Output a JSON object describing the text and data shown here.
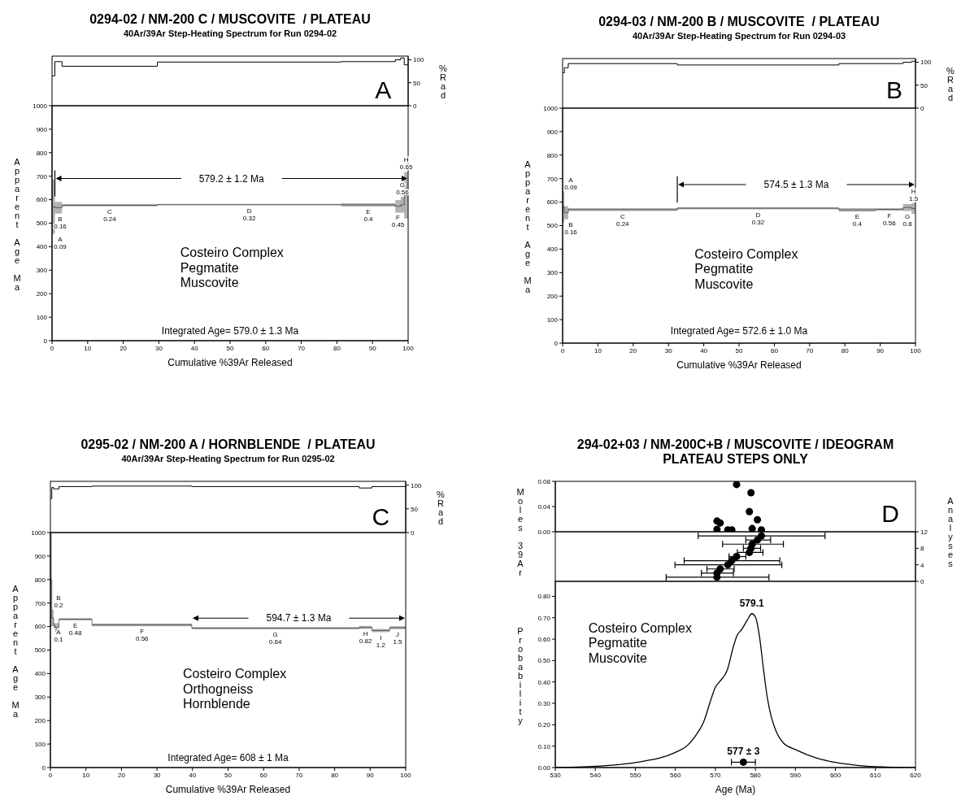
{
  "chart_data": [
    {
      "type": "step",
      "title": "0294-02 / NM-200 C / MUSCOVITE  / PLATEAU",
      "subtitle": "40Ar/39Ar Step-Heating Spectrum for Run 0294-02",
      "x": [
        0,
        0.8,
        2.8,
        29.6,
        81.2,
        96.4,
        97.9,
        98.9,
        100
      ],
      "series": [
        {
          "color": "#000000",
          "values": [
            65,
            96,
            86,
            95,
            96,
            100,
            104,
            89,
            89
          ]
        }
      ],
      "xlim": [
        0,
        100
      ],
      "xticks": [
        0,
        10,
        20,
        30,
        40,
        50,
        60,
        70,
        80,
        90,
        100
      ],
      "ylim": [
        0,
        108
      ],
      "yticks": [
        0,
        50,
        100
      ],
      "ylabel": "%Rad",
      "tick_labels": "y",
      "annotations": [
        "A"
      ]
    },
    {
      "type": "step",
      "x": [
        0,
        0.8,
        2.8,
        29.6,
        81.2,
        96.4,
        97.9,
        98.9,
        100
      ],
      "series": [
        {
          "color": "#000000",
          "values": [
            570,
            566,
            576,
            579,
            578,
            572,
            578,
            619,
            619
          ],
          "lower": [
            455,
            541,
            572,
            576,
            571,
            545,
            545,
            520,
            520
          ],
          "upper": [
            685,
            591,
            581,
            582,
            585,
            599,
            612,
            718,
            718
          ]
        }
      ],
      "xlim": [
        0,
        100
      ],
      "xticks": [
        0,
        10,
        20,
        30,
        40,
        50,
        60,
        70,
        80,
        90,
        100
      ],
      "ylim": [
        0,
        1000
      ],
      "yticks": [
        0,
        100,
        200,
        300,
        400,
        500,
        600,
        700,
        800,
        900,
        1000
      ],
      "xlabel": "Cumulative %39Ar Released",
      "ylabel": "Apparent Age Ma",
      "annotations": [
        "Costeiro Complex\nPegmatite\nMuscovite",
        "Integrated Age= 579.0 ± 1.3 Ma",
        "579.2 ± 1.2 Ma",
        {
          "text": "A\n0.09",
          "x": 0.4,
          "y": 455
        },
        {
          "text": "B\n0.16",
          "x": 1.8,
          "y": 541
        },
        {
          "text": "C\n0.24",
          "x": 16.2,
          "y": 572
        },
        {
          "text": "D\n0.32",
          "x": 55.4,
          "y": 576
        },
        {
          "text": "E\n0.4",
          "x": 88.8,
          "y": 571
        },
        {
          "text": "F\n0.45",
          "x": 97.15,
          "y": 545
        },
        {
          "text": "G\n0.56",
          "x": 98.4,
          "y": 612
        },
        {
          "text": "H\n0.65",
          "x": 99.45,
          "y": 718
        }
      ]
    },
    {
      "type": "step",
      "title": "0294-03 / NM-200 B / MUSCOVITE  / PLATEAU",
      "subtitle": "40Ar/39Ar Step-Heating Spectrum for Run 0294-03",
      "x": [
        0,
        0.5,
        1.6,
        32.5,
        78.3,
        88.7,
        96.5,
        98.9,
        100
      ],
      "series": [
        {
          "color": "#000000",
          "values": [
            77,
            88,
            97,
            94,
            97,
            97,
            100,
            102,
            102
          ]
        }
      ],
      "xlim": [
        0,
        100
      ],
      "xticks": [
        0,
        10,
        20,
        30,
        40,
        50,
        60,
        70,
        80,
        90,
        100
      ],
      "ylim": [
        0,
        108
      ],
      "yticks": [
        0,
        50,
        100
      ],
      "ylabel": "%Rad",
      "tick_labels": "y",
      "annotations": [
        "B"
      ]
    },
    {
      "type": "step",
      "x": [
        0,
        0.5,
        1.6,
        32.5,
        78.3,
        88.7,
        96.5,
        98.9,
        100
      ],
      "series": [
        {
          "color": "#000000",
          "values": [
            580,
            555,
            568,
            574,
            567,
            569,
            577,
            573,
            573
          ],
          "lower": [
            515,
            527,
            562,
            569,
            560,
            564,
            562,
            550,
            550
          ],
          "upper": [
            645,
            582,
            574,
            579,
            574,
            574,
            592,
            596,
            596
          ]
        }
      ],
      "xlim": [
        0,
        100
      ],
      "xticks": [
        0,
        10,
        20,
        30,
        40,
        50,
        60,
        70,
        80,
        90,
        100
      ],
      "ylim": [
        0,
        1000
      ],
      "yticks": [
        0,
        100,
        200,
        300,
        400,
        500,
        600,
        700,
        800,
        900,
        1000
      ],
      "xlabel": "Cumulative %39Ar Released",
      "ylabel": "Apparent Age Ma",
      "annotations": [
        "Costeiro Complex\nPegmatite\nMuscovite",
        "Integrated Age= 572.6 ± 1.0 Ma",
        "574.5 ± 1.3 Ma",
        {
          "text": "A\n0.09",
          "x": 0.25,
          "y": 645
        },
        {
          "text": "B\n0.16",
          "x": 1.05,
          "y": 527
        },
        {
          "text": "C\n0.24",
          "x": 17,
          "y": 562
        },
        {
          "text": "D\n0.32",
          "x": 55.4,
          "y": 569
        },
        {
          "text": "E\n0.4",
          "x": 83.5,
          "y": 560
        },
        {
          "text": "F\n0.56",
          "x": 92.6,
          "y": 564
        },
        {
          "text": "G\n0.8",
          "x": 97.7,
          "y": 562
        },
        {
          "text": "H\n1.5",
          "x": 99.45,
          "y": 596
        }
      ]
    },
    {
      "type": "step",
      "title": "0295-02 / NM-200 A / HORNBLENDE  / PLATEAU",
      "subtitle": "40Ar/39Ar Step-Heating Spectrum for Run 0295-02",
      "x": [
        0,
        0.4,
        0.9,
        1.3,
        2.4,
        11.7,
        39.8,
        86.9,
        90.5,
        95.5,
        100
      ],
      "series": [
        {
          "color": "#000000",
          "values": [
            72,
            95,
            92,
            92,
            97,
            98,
            97,
            94,
            97,
            97,
            97
          ]
        }
      ],
      "xlim": [
        0,
        100
      ],
      "xticks": [
        0,
        10,
        20,
        30,
        40,
        50,
        60,
        70,
        80,
        90,
        100
      ],
      "ylim": [
        0,
        108
      ],
      "yticks": [
        0,
        50,
        100
      ],
      "ylabel": "%Rad",
      "tick_labels": "y",
      "annotations": [
        "C"
      ]
    },
    {
      "type": "step",
      "x": [
        0,
        0.4,
        0.9,
        1.3,
        2.4,
        11.7,
        39.8,
        86.9,
        90.5,
        95.5,
        100
      ],
      "series": [
        {
          "color": "#000000",
          "values": [
            800,
            636,
            605,
            595,
            631,
            607,
            593,
            596,
            583,
            595,
            595
          ],
          "lower": [
            600,
            600,
            595,
            576,
            626,
            601,
            588,
            590,
            576,
            589,
            589
          ],
          "upper": [
            1000,
            672,
            615,
            614,
            636,
            613,
            598,
            603,
            590,
            601,
            601
          ]
        }
      ],
      "xlim": [
        0,
        100
      ],
      "xticks": [
        0,
        10,
        20,
        30,
        40,
        50,
        60,
        70,
        80,
        90,
        100
      ],
      "ylim": [
        0,
        1000
      ],
      "yticks": [
        0,
        100,
        200,
        300,
        400,
        500,
        600,
        700,
        800,
        900,
        1000
      ],
      "xlabel": "Cumulative %39Ar Released",
      "ylabel": "Apparent Age Ma",
      "annotations": [
        "Costeiro Complex\nOrthogneiss\nHornblende",
        "Integrated Age= 608 ± 1 Ma",
        "594.7 ± 1.3 Ma",
        {
          "text": "A\n0.1",
          "x": 0.2,
          "y": 600
        },
        {
          "text": "B\n0.2",
          "x": 0.65,
          "y": 672
        },
        {
          "text": "E\n0.48",
          "x": 7,
          "y": 626
        },
        {
          "text": "F\n0.56",
          "x": 25.8,
          "y": 601
        },
        {
          "text": "G\n0.64",
          "x": 63.3,
          "y": 588
        },
        {
          "text": "H\n0.82",
          "x": 88.7,
          "y": 590
        },
        {
          "text": "I\n1.2",
          "x": 93,
          "y": 576
        },
        {
          "text": "J\n1.5",
          "x": 97.7,
          "y": 589
        }
      ]
    },
    {
      "type": "scatter",
      "title": "294-02+03 / NM-200C+B / MUSCOVITE / IDEOGRAM",
      "subtitle": "PLATEAU STEPS ONLY",
      "marker": "circle",
      "x": [
        575.3,
        578.9,
        578.5,
        580.5,
        570.4,
        571.2,
        570.4,
        573.1,
        574.1,
        579.2,
        581.5
      ],
      "series": [
        {
          "color": "#000000",
          "values": [
            0.075,
            0.062,
            0.032,
            0.019,
            0.017,
            0.014,
            0.004,
            0.003,
            0.003,
            0.005,
            0.003
          ]
        }
      ],
      "xlim": [
        530,
        620
      ],
      "xticks": [
        530,
        540,
        550,
        560,
        570,
        580,
        590,
        600,
        610,
        620
      ],
      "ylim": [
        0,
        0.08
      ],
      "yticks": [
        {
          "value": 0,
          "label": "0.00"
        },
        {
          "value": 0.04,
          "label": "0.04"
        },
        {
          "value": 0.08,
          "label": "0.08"
        }
      ],
      "ylabel": "Moles 39Ar",
      "tick_labels": "y",
      "annotations": [
        "D"
      ]
    },
    {
      "type": "scatter",
      "marker": "circle",
      "x": [
        570.4,
        570.4,
        571.2,
        573.1,
        574.1,
        575.3,
        578.5,
        578.9,
        579.2,
        580.5,
        581.5
      ],
      "series": [
        {
          "color": "#000000",
          "values": [
            1,
            2,
            3,
            4,
            5,
            6,
            7,
            8,
            9,
            10,
            11
          ],
          "xerrors": [
            [
              557.7,
              583.4
            ],
            [
              566.5,
              574.5
            ],
            [
              567.9,
              574.7
            ],
            [
              559.9,
              586.6
            ],
            [
              562.2,
              586.1
            ],
            [
              573.4,
              577.6
            ],
            [
              575.5,
              581.9
            ],
            [
              577.0,
              581.3
            ],
            [
              571.8,
              587.0
            ],
            [
              577.6,
              583.8
            ],
            [
              565.7,
              597.4
            ]
          ]
        }
      ],
      "xlim": [
        530,
        620
      ],
      "xticks": [
        530,
        540,
        550,
        560,
        570,
        580,
        590,
        600,
        610,
        620
      ],
      "ylim": [
        0,
        12
      ],
      "yticks": [
        0,
        4,
        8,
        12
      ],
      "ylabel": "Analyses",
      "tick_labels": "y"
    },
    {
      "type": "line",
      "series": [
        {
          "type": "line",
          "color": "#000000",
          "x": [
            530,
            536.7,
            540,
            550,
            560,
            563,
            565,
            567,
            569,
            570,
            571,
            573,
            574.5,
            575.5,
            576.5,
            578,
            579.1,
            580,
            581,
            582,
            583,
            584,
            585,
            587,
            590,
            595,
            600,
            605,
            610,
            618,
            620
          ],
          "values": [
            0,
            0.003,
            0.006,
            0.023,
            0.071,
            0.103,
            0.147,
            0.21,
            0.324,
            0.375,
            0.4,
            0.457,
            0.565,
            0.62,
            0.643,
            0.69,
            0.719,
            0.704,
            0.615,
            0.463,
            0.324,
            0.235,
            0.178,
            0.115,
            0.084,
            0.046,
            0.024,
            0.011,
            0.004,
            0,
            0
          ]
        },
        {
          "type": "scatter",
          "color": "#000000",
          "x": [
            577
          ],
          "values": [
            0.025
          ],
          "xerrors": [
            3
          ]
        }
      ],
      "xlim": [
        530,
        620
      ],
      "xticks": [
        530,
        540,
        550,
        560,
        570,
        580,
        590,
        600,
        610,
        620
      ],
      "ylim": [
        0,
        0.87
      ],
      "yticks": [
        {
          "value": 0,
          "label": "0.00"
        },
        {
          "value": 0.1,
          "label": "0.10"
        },
        {
          "value": 0.2,
          "label": "0.20"
        },
        {
          "value": 0.3,
          "label": "0.30"
        },
        {
          "value": 0.4,
          "label": "0.40"
        },
        {
          "value": 0.5,
          "label": "0.50"
        },
        {
          "value": 0.6,
          "label": "0.60"
        },
        {
          "value": 0.7,
          "label": "0.70"
        },
        {
          "value": 0.8,
          "label": "0.80"
        }
      ],
      "xlabel": "Age (Ma)",
      "ylabel": "Probability",
      "annotations": [
        "Costeiro Complex\nPegmatite\nMuscovite",
        {
          "text": "579.1",
          "x": 579.1,
          "y": 0.719
        },
        {
          "text": "577 ± 3",
          "x": 577,
          "y": 0.025
        }
      ]
    }
  ]
}
